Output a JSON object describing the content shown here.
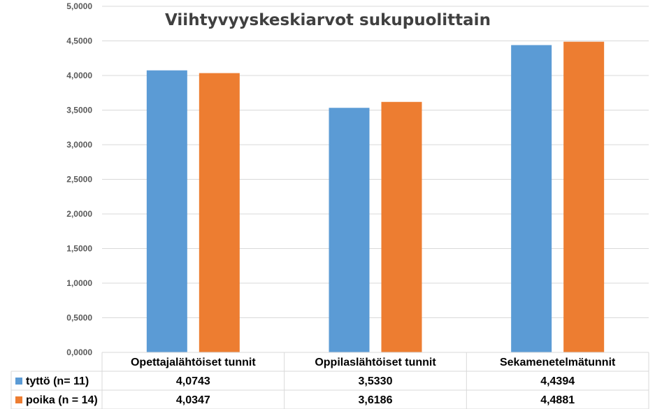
{
  "chart_data": {
    "type": "bar",
    "title": "Viihtyvyyskeskiarvot sukupuolittain",
    "categories": [
      "Opettajalähtöiset tunnit",
      "Oppilaslähtöiset tunnit",
      "Sekamenetelmätunnit"
    ],
    "series": [
      {
        "name": "tyttö (n= 11)",
        "color": "#5b9bd5",
        "values": [
          4.0743,
          3.533,
          4.4394
        ],
        "labels": [
          "4,0743",
          "3,5330",
          "4,4394"
        ]
      },
      {
        "name": "poika (n = 14)",
        "color": "#ed7d31",
        "values": [
          4.0347,
          3.6186,
          4.4881
        ],
        "labels": [
          "4,0347",
          "3,6186",
          "4,4881"
        ]
      }
    ],
    "ylim": [
      0,
      5
    ],
    "yticks": [
      0,
      0.5,
      1,
      1.5,
      2,
      2.5,
      3,
      3.5,
      4,
      4.5,
      5
    ],
    "ytick_labels": [
      "0,0000",
      "0,5000",
      "1,0000",
      "1,5000",
      "2,0000",
      "2,5000",
      "3,0000",
      "3,5000",
      "4,0000",
      "4,5000",
      "5,0000"
    ],
    "grid": true,
    "legend": "data-table",
    "xlabel": "",
    "ylabel": ""
  }
}
